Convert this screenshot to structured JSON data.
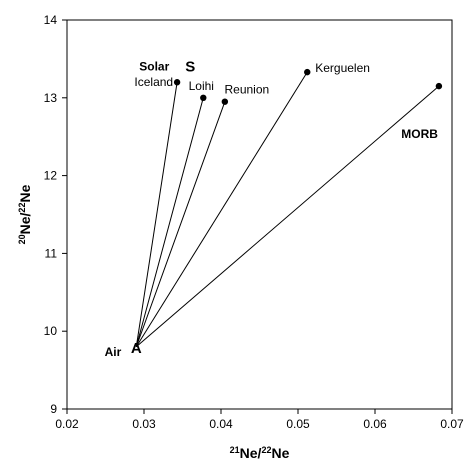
{
  "chart_data": {
    "type": "scatter",
    "title": "",
    "xlabel": {
      "sup": "21",
      "base": "Ne/",
      "sup2": "22",
      "base2": "Ne"
    },
    "ylabel": {
      "sup": "20",
      "base": "Ne/",
      "sup2": "22",
      "base2": "Ne"
    },
    "xlim": [
      0.02,
      0.07
    ],
    "ylim": [
      9,
      14
    ],
    "xticks": [
      "0.02",
      "0.03",
      "0.04",
      "0.05",
      "0.06",
      "0.07"
    ],
    "yticks": [
      "9",
      "10",
      "11",
      "12",
      "13",
      "14"
    ],
    "grid": false,
    "mixing_origin": {
      "name": "Air",
      "letter": "A",
      "x": 0.029,
      "y": 9.8
    },
    "solar": {
      "name": "Solar",
      "letter": "S",
      "x": 0.0325,
      "y": 13.4
    },
    "points": [
      {
        "name": "Iceland",
        "x": 0.0343,
        "y": 13.2
      },
      {
        "name": "Loihi",
        "x": 0.0377,
        "y": 13.0
      },
      {
        "name": "Reunion",
        "x": 0.0405,
        "y": 12.95
      },
      {
        "name": "Kerguelen",
        "x": 0.0512,
        "y": 13.33
      },
      {
        "name": "MORB",
        "x": 0.0683,
        "y": 13.15
      }
    ]
  }
}
